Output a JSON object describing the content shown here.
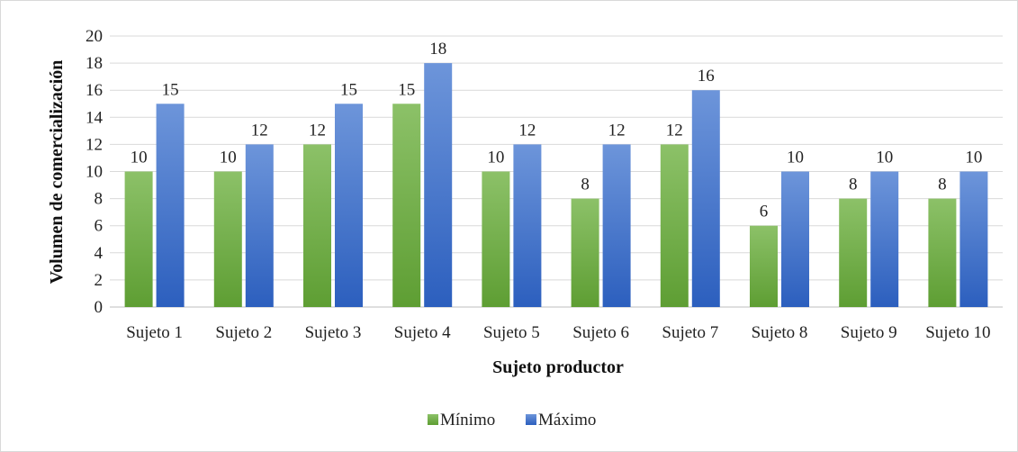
{
  "chart_data": {
    "type": "bar",
    "title": "",
    "xlabel": "Sujeto productor",
    "ylabel": "Volumen de comercialización",
    "categories": [
      "Sujeto 1",
      "Sujeto 2",
      "Sujeto 3",
      "Sujeto 4",
      "Sujeto 5",
      "Sujeto 6",
      "Sujeto 7",
      "Sujeto 8",
      "Sujeto 9",
      "Sujeto 10"
    ],
    "series": [
      {
        "name": "Mínimo",
        "values": [
          10,
          10,
          12,
          15,
          10,
          8,
          12,
          6,
          8,
          8
        ],
        "color_top": "#8cc168",
        "color_bottom": "#5e9e33"
      },
      {
        "name": "Máximo",
        "values": [
          15,
          12,
          15,
          18,
          12,
          12,
          16,
          10,
          10,
          10
        ],
        "color_top": "#6d95da",
        "color_bottom": "#2c5fbe"
      }
    ],
    "ylim": [
      0,
      20
    ],
    "yticks": [
      0,
      2,
      4,
      6,
      8,
      10,
      12,
      14,
      16,
      18,
      20
    ],
    "grid": true,
    "gridline_color": "#d9d9d9",
    "legend_position": "bottom",
    "data_labels": true
  }
}
